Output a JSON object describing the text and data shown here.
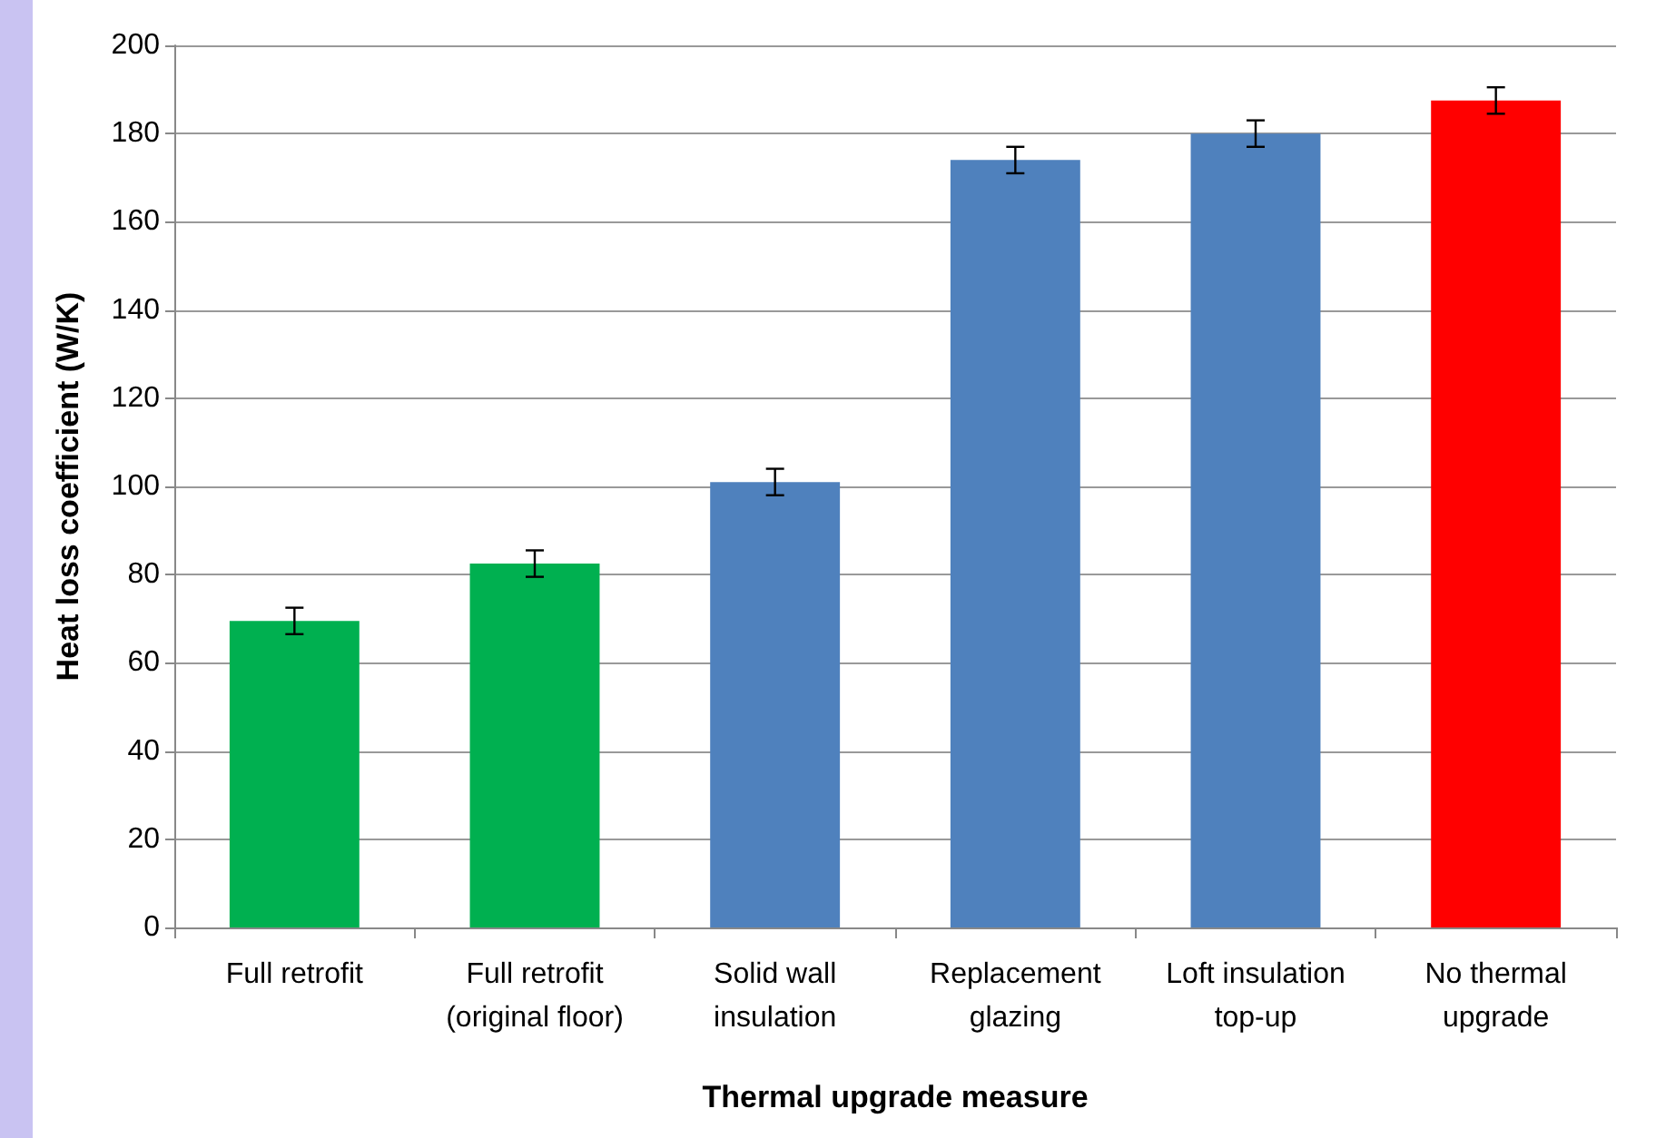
{
  "chart_data": {
    "type": "bar",
    "xlabel": "Thermal upgrade measure",
    "ylabel": "Heat loss coefficient (W/K)",
    "categories": [
      "Full retrofit",
      "Full retrofit\n(original floor)",
      "Solid wall\ninsulation",
      "Replacement\nglazing",
      "Loft insulation\ntop-up",
      "No thermal\nupgrade"
    ],
    "values": [
      69.5,
      82.5,
      101,
      174,
      180,
      187.5
    ],
    "colors": [
      "#00b050",
      "#00b050",
      "#4f81bd",
      "#4f81bd",
      "#4f81bd",
      "#ff0000"
    ],
    "errors": [
      3,
      3,
      3,
      3,
      3,
      3
    ],
    "ylim": [
      0,
      200
    ],
    "yticks": [
      0,
      20,
      40,
      60,
      80,
      100,
      120,
      140,
      160,
      180,
      200
    ],
    "grid": "y"
  }
}
